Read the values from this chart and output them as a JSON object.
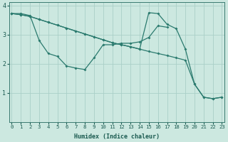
{
  "xlabel": "Humidex (Indice chaleur)",
  "line_straight": {
    "x": [
      0,
      1,
      2,
      3,
      4,
      5,
      6,
      7,
      8,
      9,
      10,
      11,
      12,
      13,
      14,
      15,
      16,
      17,
      18,
      19,
      20,
      21,
      22,
      23
    ],
    "y": [
      3.72,
      3.68,
      3.62,
      3.52,
      3.42,
      3.32,
      3.22,
      3.12,
      3.02,
      2.92,
      2.82,
      2.72,
      2.65,
      2.58,
      2.5,
      2.42,
      2.35,
      2.28,
      2.2,
      2.12,
      1.3,
      0.85,
      0.8,
      0.85
    ]
  },
  "line_zigzag": {
    "x": [
      0,
      1,
      2,
      3,
      4,
      5,
      6,
      7,
      8,
      9,
      10,
      11,
      12,
      13,
      14,
      15,
      16,
      17
    ],
    "y": [
      3.72,
      3.72,
      3.65,
      2.8,
      2.35,
      2.25,
      1.92,
      1.85,
      1.8,
      2.2,
      2.65,
      2.65,
      2.7,
      2.7,
      2.75,
      2.9,
      3.3,
      3.25
    ]
  },
  "line_peak": {
    "x": [
      0,
      1,
      2,
      3,
      4,
      5,
      6,
      7,
      8,
      9,
      10,
      11,
      12,
      13,
      14,
      15,
      16,
      17,
      18,
      19,
      20,
      21,
      22,
      23
    ],
    "y": [
      3.72,
      3.68,
      3.62,
      3.52,
      3.42,
      3.32,
      3.22,
      3.12,
      3.02,
      2.92,
      2.82,
      2.72,
      2.65,
      2.58,
      2.5,
      3.75,
      3.72,
      3.35,
      3.2,
      2.5,
      1.3,
      0.85,
      0.8,
      0.85
    ]
  },
  "color": "#2a7a6e",
  "bg_color": "#cce8e0",
  "grid_color": "#aacfc8",
  "ylim": [
    0.0,
    4.1
  ],
  "xlim": [
    -0.3,
    23.3
  ],
  "yticks": [
    1,
    2,
    3,
    4
  ],
  "xticks": [
    0,
    1,
    2,
    3,
    4,
    5,
    6,
    7,
    8,
    9,
    10,
    11,
    12,
    13,
    14,
    15,
    16,
    17,
    18,
    19,
    20,
    21,
    22,
    23
  ],
  "tick_color": "#1a5a50",
  "xlabel_fontsize": 6.0,
  "tick_fontsize": 5.2,
  "ytick_fontsize": 6.0,
  "linewidth": 0.9,
  "markersize": 2.0
}
